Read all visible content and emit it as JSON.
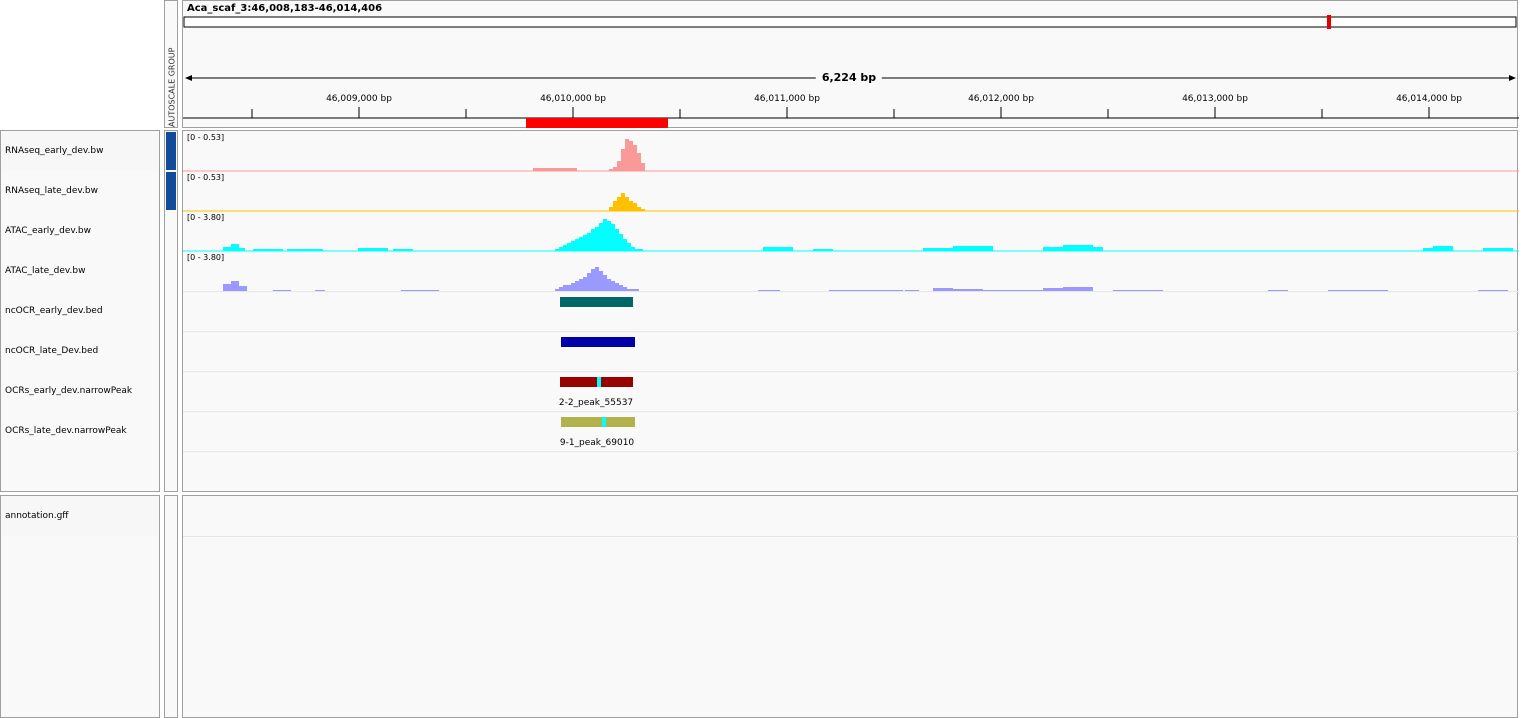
{
  "header": {
    "locus": "Aca_scaf_3:46,008,183-46,014,406",
    "autoscale_group": "AUTOSCALE GROUP",
    "span": "6,224 bp",
    "ruler_ticks": [
      "46,009,000 bp",
      "46,010,000 bp",
      "46,011,000 bp",
      "46,012,000 bp",
      "46,013,000 bp",
      "46,014,000 bp"
    ]
  },
  "tracks": [
    {
      "name": "RNAseq_early_dev.bw",
      "range": "[0 - 0.53]",
      "color": "#f99a99",
      "type": "bigwig",
      "autoscaled": true
    },
    {
      "name": "RNAseq_late_dev.bw",
      "range": "[0 - 0.53]",
      "color": "#ffc000",
      "type": "bigwig",
      "autoscaled": true
    },
    {
      "name": "ATAC_early_dev.bw",
      "range": "[0 - 3.80]",
      "color": "#00ffff",
      "type": "bigwig",
      "autoscaled": false
    },
    {
      "name": "ATAC_late_dev.bw",
      "range": "[0 - 3.80]",
      "color": "#9999ff",
      "type": "bigwig",
      "autoscaled": false
    },
    {
      "name": "ncOCR_early_dev.bed",
      "color": "#006666",
      "type": "bed"
    },
    {
      "name": "ncOCR_late_Dev.bed",
      "color": "#0000aa",
      "type": "bed"
    },
    {
      "name": "OCRs_early_dev.narrowPeak",
      "color": "#990000",
      "summit_color": "#00ffff",
      "feature_label": "2-2_peak_55537",
      "type": "narrowPeak"
    },
    {
      "name": "OCRs_late_dev.narrowPeak",
      "color": "#b2b24c",
      "summit_color": "#00ffff",
      "feature_label": "9-1_peak_69010",
      "type": "narrowPeak"
    }
  ],
  "lower_panel": {
    "tracks": [
      {
        "name": "annotation.gff"
      }
    ]
  },
  "colors": {
    "region_of_interest": "#ff0000",
    "chromosome_marker": "#e00000",
    "attribute_autoscale": "#114b9a"
  }
}
